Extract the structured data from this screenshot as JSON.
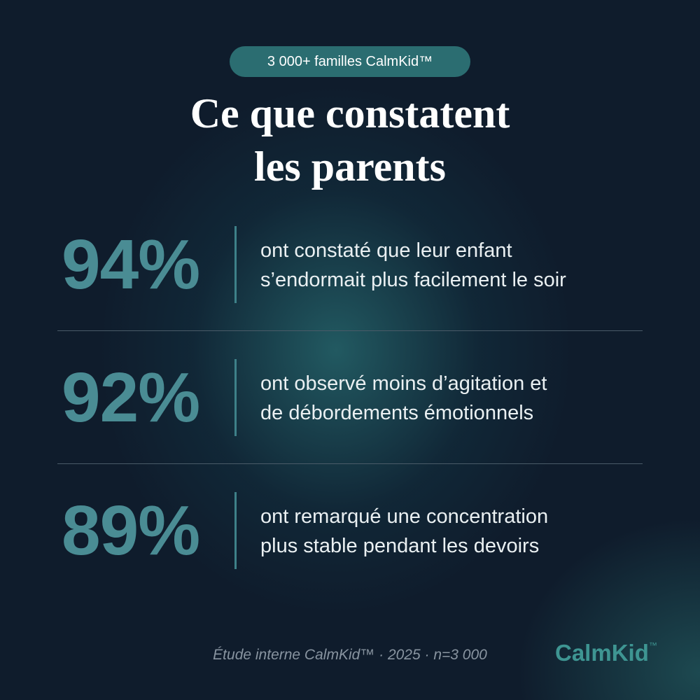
{
  "badge": "3 000+ familles CalmKid™",
  "title": [
    "Ce que constatent",
    "les parents"
  ],
  "stats": [
    {
      "value": "94%",
      "lines": [
        "ont constaté que leur enfant",
        "s’endormait plus facilement le soir"
      ]
    },
    {
      "value": "92%",
      "lines": [
        "ont observé moins d’agitation et",
        "de débordements émotionnels"
      ]
    },
    {
      "value": "89%",
      "lines": [
        "ont remarqué une concentration",
        "plus stable pendant les devoirs"
      ]
    }
  ],
  "footer": "Étude interne CalmKid™ · 2025 · n=3 000",
  "logo": {
    "name": "CalmKid",
    "mark": "™"
  }
}
